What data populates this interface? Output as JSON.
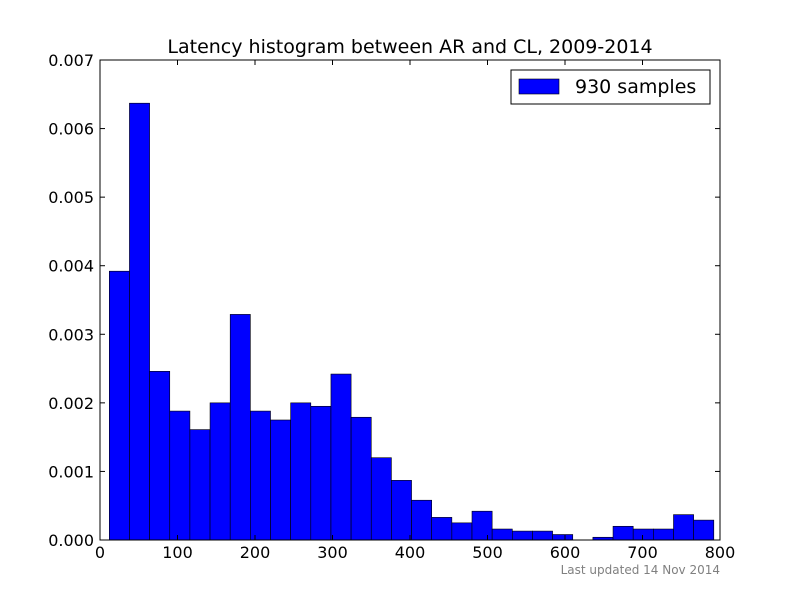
{
  "chart_data": {
    "type": "bar",
    "title": "Latency histogram between AR and CL, 2009-2014",
    "xlabel": "",
    "ylabel": "",
    "xlim": [
      0,
      800
    ],
    "ylim": [
      0,
      0.007
    ],
    "xticks": [
      0,
      100,
      200,
      300,
      400,
      500,
      600,
      700,
      800
    ],
    "xtick_labels": [
      "0",
      "100",
      "200",
      "300",
      "400",
      "500",
      "600",
      "700",
      "800"
    ],
    "yticks": [
      0,
      0.001,
      0.002,
      0.003,
      0.004,
      0.005,
      0.006,
      0.007
    ],
    "ytick_labels": [
      "0.000",
      "0.001",
      "0.002",
      "0.003",
      "0.004",
      "0.005",
      "0.006",
      "0.007"
    ],
    "grid": false,
    "legend": {
      "position": "top-right",
      "entries": [
        "930 samples"
      ]
    },
    "bar_color": "#0000ff",
    "bin_edges": [
      12,
      38,
      64,
      90,
      116,
      142,
      168,
      194,
      220,
      246,
      272,
      298,
      324,
      350,
      376,
      402,
      428,
      454,
      480,
      506,
      532,
      558,
      584,
      610,
      636,
      662,
      688,
      714,
      740,
      766,
      792
    ],
    "series": [
      {
        "name": "930 samples",
        "values": [
          0.00392,
          0.00637,
          0.00246,
          0.00188,
          0.00161,
          0.002,
          0.00329,
          0.00188,
          0.00175,
          0.002,
          0.00195,
          0.00242,
          0.00179,
          0.0012,
          0.00087,
          0.00058,
          0.00033,
          0.00025,
          0.00042,
          0.00016,
          0.00013,
          0.00013,
          8e-05,
          0.0,
          4e-05,
          0.0002,
          0.00016,
          0.00016,
          0.00037,
          0.00029
        ]
      }
    ],
    "annotation": "Last updated 14 Nov 2014"
  }
}
